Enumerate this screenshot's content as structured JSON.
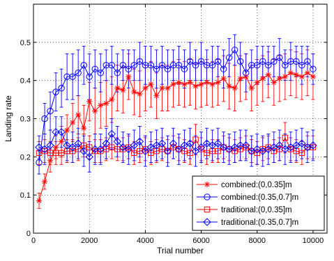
{
  "chart_data": {
    "type": "line",
    "xlabel": "Trial number",
    "ylabel": "Landing rate",
    "xlim": [
      0,
      10500
    ],
    "ylim": [
      0,
      0.6
    ],
    "xticks": [
      0,
      2000,
      4000,
      6000,
      8000,
      10000
    ],
    "yticks": [
      0,
      0.1,
      0.2,
      0.3,
      0.4,
      0.5
    ],
    "grid": true,
    "legend_position": "bottom-right",
    "x": [
      200,
      400,
      600,
      800,
      1000,
      1200,
      1400,
      1600,
      1800,
      2000,
      2200,
      2400,
      2600,
      2800,
      3000,
      3200,
      3400,
      3600,
      3800,
      4000,
      4200,
      4400,
      4600,
      4800,
      5000,
      5200,
      5400,
      5600,
      5800,
      6000,
      6200,
      6400,
      6600,
      6800,
      7000,
      7200,
      7400,
      7600,
      7800,
      8000,
      8200,
      8400,
      8600,
      8800,
      9000,
      9200,
      9400,
      9600,
      9800,
      10000
    ],
    "series": [
      {
        "name": "combined:(0,0.35]m",
        "color": "#ff0000",
        "marker": "asterisk",
        "values": [
          0.085,
          0.135,
          0.19,
          0.225,
          0.24,
          0.27,
          0.29,
          0.31,
          0.275,
          0.345,
          0.32,
          0.335,
          0.34,
          0.35,
          0.38,
          0.375,
          0.41,
          0.37,
          0.365,
          0.38,
          0.39,
          0.36,
          0.38,
          0.38,
          0.39,
          0.395,
          0.39,
          0.395,
          0.385,
          0.39,
          0.395,
          0.39,
          0.395,
          0.405,
          0.385,
          0.38,
          0.405,
          0.41,
          0.38,
          0.395,
          0.405,
          0.415,
          0.395,
          0.405,
          0.41,
          0.42,
          0.415,
          0.41,
          0.42,
          0.41
        ],
        "errors": [
          0.02,
          0.02,
          0.03,
          0.03,
          0.04,
          0.04,
          0.05,
          0.05,
          0.06,
          0.05,
          0.06,
          0.06,
          0.06,
          0.06,
          0.06,
          0.06,
          0.06,
          0.06,
          0.06,
          0.06,
          0.06,
          0.06,
          0.06,
          0.06,
          0.06,
          0.06,
          0.06,
          0.06,
          0.06,
          0.06,
          0.06,
          0.06,
          0.06,
          0.06,
          0.06,
          0.06,
          0.06,
          0.06,
          0.06,
          0.06,
          0.06,
          0.06,
          0.06,
          0.06,
          0.06,
          0.06,
          0.06,
          0.06,
          0.06,
          0.06
        ]
      },
      {
        "name": "combined:(0.35,0.7]m",
        "color": "#0000ff",
        "marker": "circle",
        "values": [
          0.185,
          0.3,
          0.32,
          0.37,
          0.38,
          0.41,
          0.41,
          0.42,
          0.44,
          0.41,
          0.43,
          0.42,
          0.44,
          0.44,
          0.42,
          0.44,
          0.43,
          0.44,
          0.45,
          0.44,
          0.44,
          0.43,
          0.44,
          0.43,
          0.44,
          0.44,
          0.43,
          0.45,
          0.44,
          0.45,
          0.44,
          0.44,
          0.45,
          0.43,
          0.46,
          0.48,
          0.45,
          0.42,
          0.44,
          0.44,
          0.45,
          0.44,
          0.45,
          0.46,
          0.44,
          0.45,
          0.45,
          0.44,
          0.45,
          0.43
        ],
        "errors": [
          0.03,
          0.04,
          0.05,
          0.05,
          0.05,
          0.06,
          0.06,
          0.06,
          0.05,
          0.06,
          0.05,
          0.05,
          0.04,
          0.05,
          0.05,
          0.04,
          0.05,
          0.04,
          0.05,
          0.05,
          0.05,
          0.05,
          0.05,
          0.05,
          0.04,
          0.05,
          0.05,
          0.05,
          0.04,
          0.05,
          0.04,
          0.05,
          0.04,
          0.05,
          0.05,
          0.04,
          0.05,
          0.05,
          0.04,
          0.05,
          0.04,
          0.05,
          0.04,
          0.05,
          0.04,
          0.05,
          0.04,
          0.05,
          0.04,
          0.04
        ]
      },
      {
        "name": "traditional:(0,0.35]m",
        "color": "#ff0000",
        "marker": "square",
        "values": [
          0.21,
          0.215,
          0.21,
          0.21,
          0.21,
          0.215,
          0.215,
          0.22,
          0.23,
          0.225,
          0.215,
          0.215,
          0.22,
          0.225,
          0.22,
          0.22,
          0.225,
          0.21,
          0.215,
          0.22,
          0.21,
          0.215,
          0.22,
          0.215,
          0.225,
          0.22,
          0.215,
          0.21,
          0.245,
          0.22,
          0.21,
          0.215,
          0.215,
          0.225,
          0.22,
          0.215,
          0.22,
          0.225,
          0.215,
          0.21,
          0.22,
          0.225,
          0.215,
          0.22,
          0.25,
          0.22,
          0.215,
          0.21,
          0.225,
          0.225
        ],
        "errors": [
          0.03,
          0.03,
          0.03,
          0.03,
          0.03,
          0.03,
          0.03,
          0.03,
          0.03,
          0.03,
          0.03,
          0.03,
          0.03,
          0.03,
          0.03,
          0.03,
          0.03,
          0.03,
          0.03,
          0.03,
          0.03,
          0.03,
          0.03,
          0.03,
          0.03,
          0.03,
          0.03,
          0.03,
          0.04,
          0.03,
          0.03,
          0.03,
          0.03,
          0.03,
          0.03,
          0.03,
          0.03,
          0.03,
          0.03,
          0.03,
          0.03,
          0.03,
          0.03,
          0.03,
          0.04,
          0.03,
          0.03,
          0.03,
          0.03,
          0.03
        ]
      },
      {
        "name": "traditional:(0.35,0.7]m",
        "color": "#0000ff",
        "marker": "diamond",
        "values": [
          0.225,
          0.22,
          0.23,
          0.265,
          0.265,
          0.23,
          0.225,
          0.235,
          0.215,
          0.2,
          0.22,
          0.22,
          0.235,
          0.26,
          0.24,
          0.225,
          0.22,
          0.23,
          0.24,
          0.215,
          0.225,
          0.23,
          0.235,
          0.215,
          0.235,
          0.22,
          0.23,
          0.235,
          0.215,
          0.225,
          0.235,
          0.23,
          0.235,
          0.225,
          0.22,
          0.225,
          0.23,
          0.23,
          0.215,
          0.22,
          0.215,
          0.22,
          0.225,
          0.23,
          0.22,
          0.225,
          0.23,
          0.235,
          0.225,
          0.23
        ],
        "errors": [
          0.03,
          0.04,
          0.04,
          0.04,
          0.04,
          0.04,
          0.04,
          0.04,
          0.04,
          0.04,
          0.04,
          0.04,
          0.04,
          0.04,
          0.04,
          0.04,
          0.04,
          0.04,
          0.04,
          0.04,
          0.04,
          0.04,
          0.04,
          0.04,
          0.04,
          0.04,
          0.04,
          0.04,
          0.04,
          0.04,
          0.04,
          0.04,
          0.04,
          0.04,
          0.04,
          0.04,
          0.04,
          0.04,
          0.04,
          0.04,
          0.04,
          0.04,
          0.04,
          0.04,
          0.04,
          0.04,
          0.04,
          0.04,
          0.04,
          0.04
        ]
      }
    ]
  }
}
